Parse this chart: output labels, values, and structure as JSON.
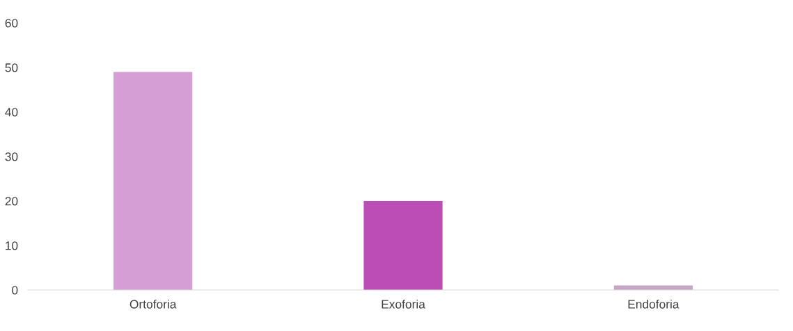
{
  "chart_data": {
    "type": "bar",
    "categories": [
      "Ortoforia",
      "Exoforia",
      "Endoforia"
    ],
    "values": [
      49,
      20,
      1
    ],
    "colors": [
      "#d59fd5",
      "#bc4db7",
      "#c4a6c4"
    ],
    "ylim": [
      0,
      60
    ],
    "yticks": [
      0,
      10,
      20,
      30,
      40,
      50,
      60
    ],
    "grid": false,
    "legend": false
  }
}
